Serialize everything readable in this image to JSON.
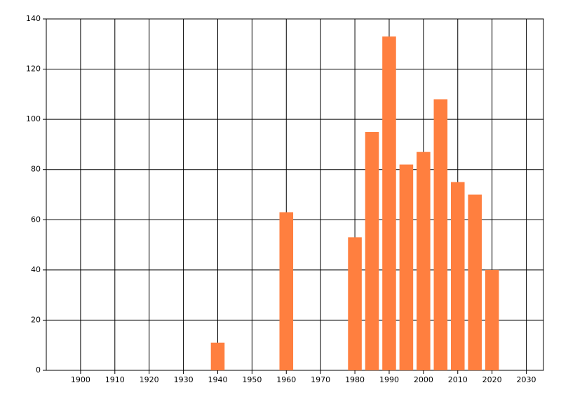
{
  "chart_data": {
    "type": "bar",
    "x": [
      1940,
      1960,
      1980,
      1985,
      1990,
      1995,
      2000,
      2005,
      2010,
      2015,
      2020
    ],
    "values": [
      11,
      63,
      53,
      95,
      133,
      82,
      87,
      108,
      75,
      70,
      40
    ],
    "color": "#ff7f3f",
    "xlim": [
      1890,
      2035
    ],
    "xticks": [
      1900,
      1910,
      1920,
      1930,
      1940,
      1950,
      1960,
      1970,
      1980,
      1990,
      2000,
      2010,
      2020,
      2030
    ],
    "ylim": [
      0,
      140
    ],
    "yticks": [
      0,
      20,
      40,
      60,
      80,
      100,
      120,
      140
    ],
    "grid": true
  }
}
